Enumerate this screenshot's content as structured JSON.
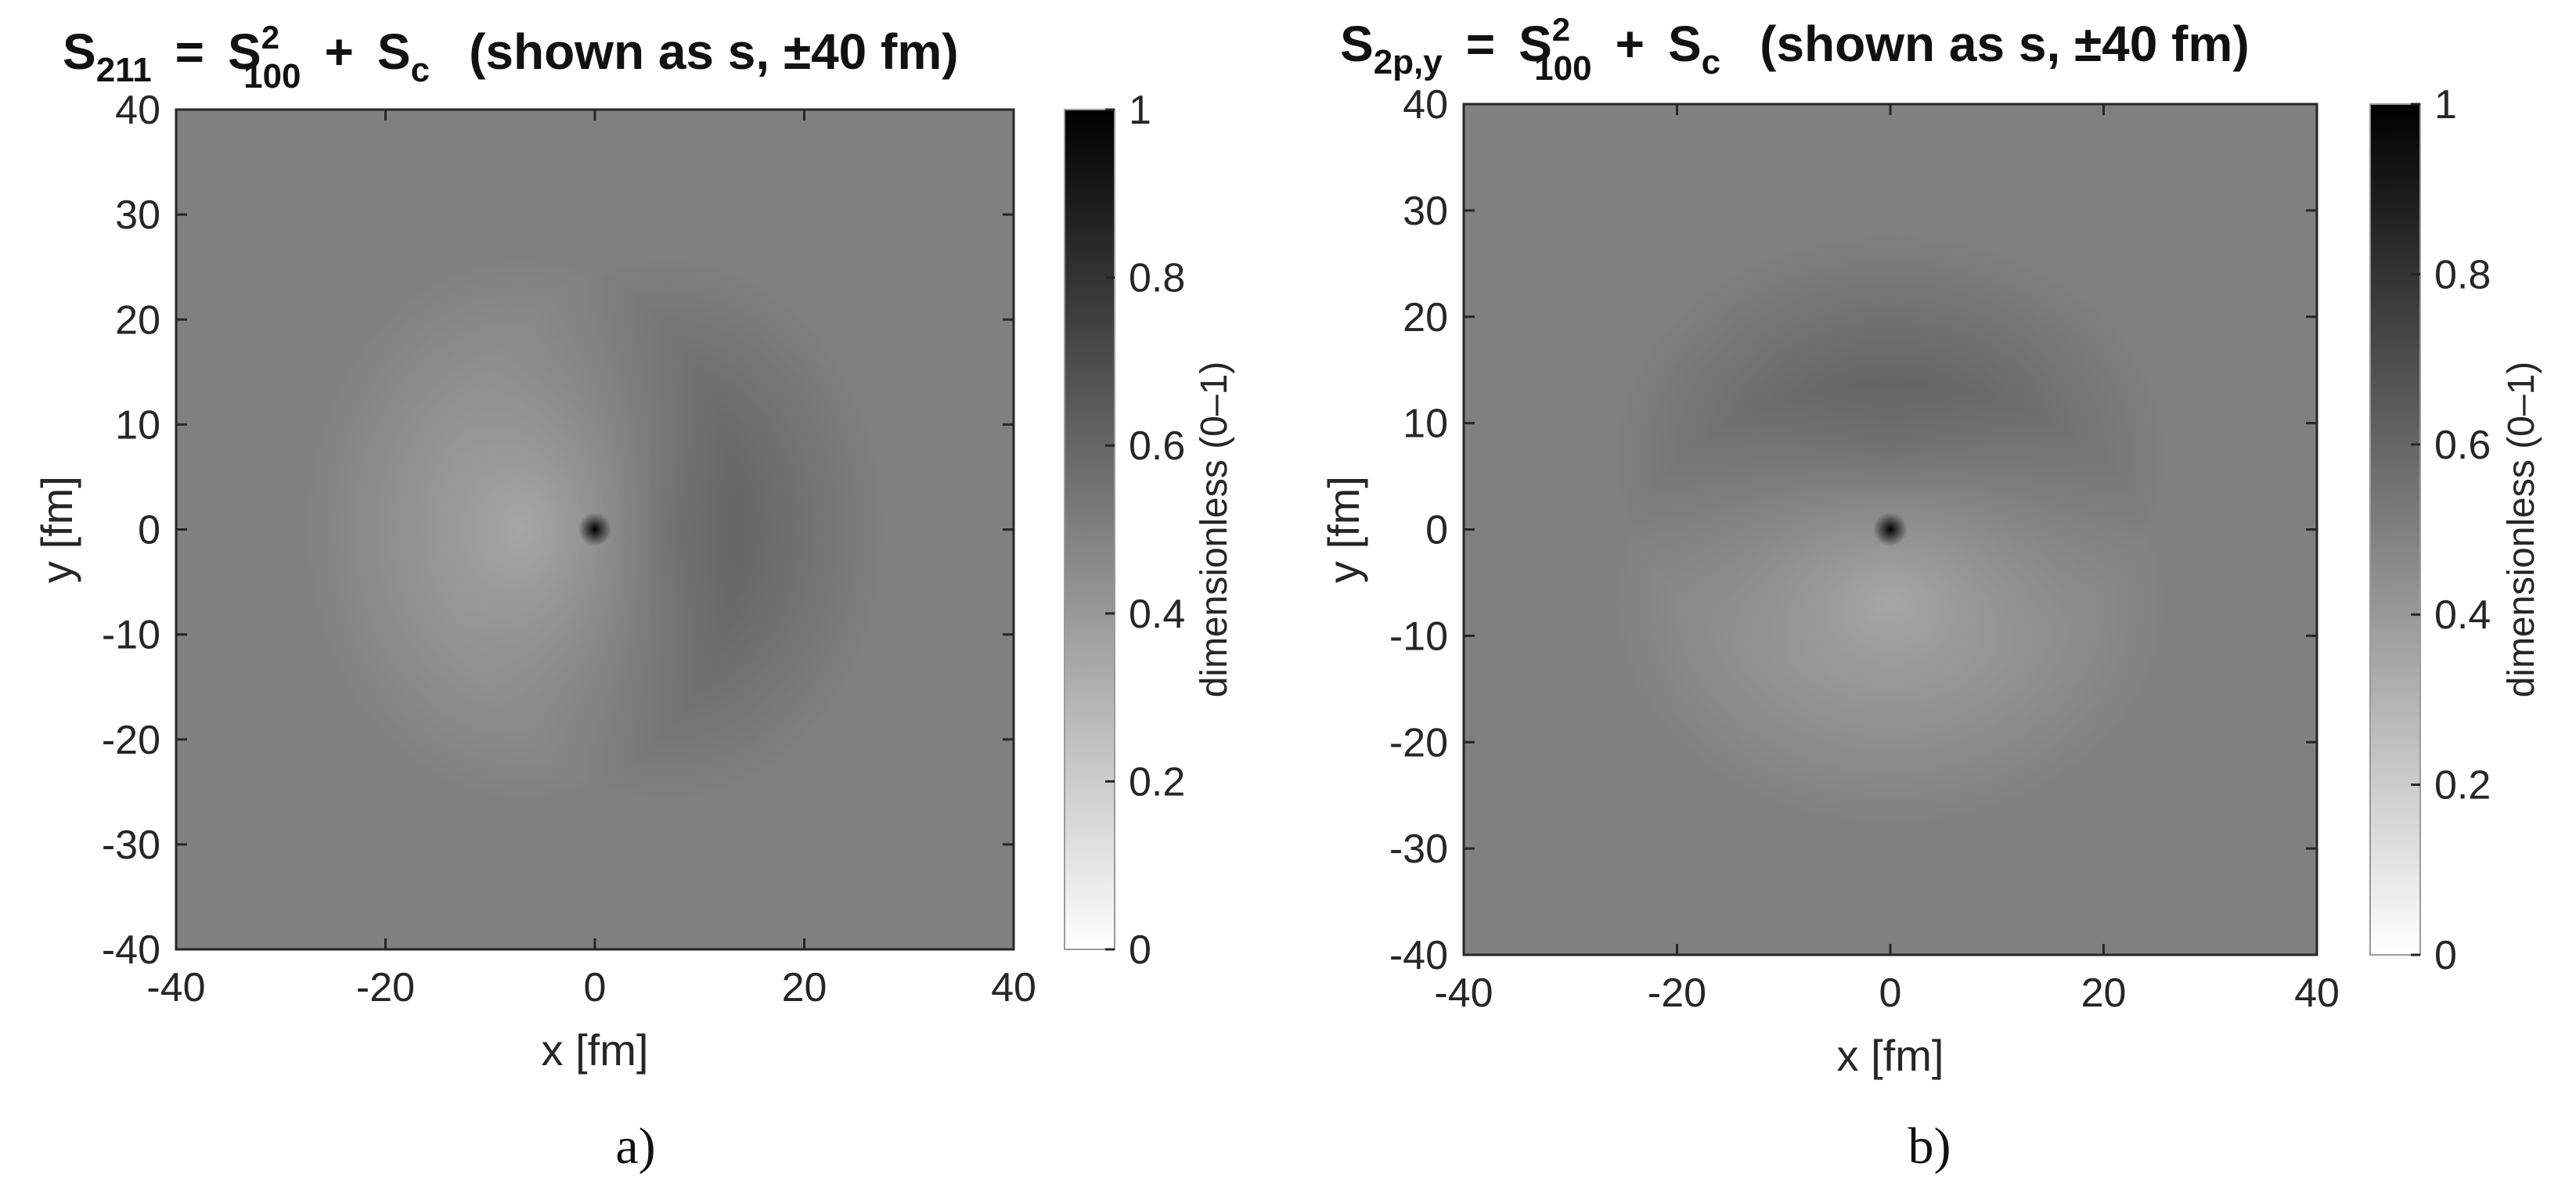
{
  "figure": {
    "panel_labels": [
      "a)",
      "b)"
    ]
  },
  "chart_data": [
    {
      "type": "heatmap",
      "panel": "a)",
      "title": {
        "main": "S",
        "sub_main": "211",
        "eq": "=",
        "term1": "S",
        "term1_sup": "2",
        "term1_sub": "100",
        "plus": "+",
        "term2": "S",
        "term2_sub": "c",
        "note": "(shown as s,  ±40  fm)"
      },
      "xlabel": "x [fm]",
      "ylabel": "y [fm]",
      "xlim": [
        -40,
        40
      ],
      "ylim": [
        -40,
        40
      ],
      "xticks": [
        "-40",
        "-20",
        "0",
        "20",
        "40"
      ],
      "yticks": [
        "40",
        "30",
        "20",
        "10",
        "0",
        "-10",
        "-20",
        "-30",
        "-40"
      ],
      "colorbar": {
        "label": "dimensionless (0–1)",
        "ticks": [
          "1",
          "0.8",
          "0.6",
          "0.4",
          "0.2",
          "0"
        ],
        "range": [
          0,
          1
        ],
        "colormap": "gray (0 = white, 1 = black)"
      },
      "background_value": 0.5,
      "features": [
        {
          "kind": "dark lobe",
          "center": [
            7,
            0
          ],
          "peak_value": 0.65,
          "extent": [
            8,
            10
          ]
        },
        {
          "kind": "light lobe",
          "center": [
            -7,
            0
          ],
          "peak_value": 0.35,
          "extent": [
            8,
            10
          ]
        },
        {
          "kind": "core",
          "center": [
            0,
            0
          ],
          "peak_value": 1.0,
          "extent": [
            1,
            1
          ]
        }
      ]
    },
    {
      "type": "heatmap",
      "panel": "b)",
      "title": {
        "main": "S",
        "sub_main": "2p,y",
        "eq": "=",
        "term1": "S",
        "term1_sup": "2",
        "term1_sub": "100",
        "plus": "+",
        "term2": "S",
        "term2_sub": "c",
        "note": "(shown as s,  ±40  fm)"
      },
      "xlabel": "x [fm]",
      "ylabel": "y [fm]",
      "xlim": [
        -40,
        40
      ],
      "ylim": [
        -40,
        40
      ],
      "xticks": [
        "-40",
        "-20",
        "0",
        "20",
        "40"
      ],
      "yticks": [
        "40",
        "30",
        "20",
        "10",
        "0",
        "-10",
        "-20",
        "-30",
        "-40"
      ],
      "colorbar": {
        "label": "dimensionless (0–1)",
        "ticks": [
          "1",
          "0.8",
          "0.6",
          "0.4",
          "0.2",
          "0"
        ],
        "range": [
          0,
          1
        ],
        "colormap": "gray (0 = white, 1 = black)"
      },
      "background_value": 0.5,
      "features": [
        {
          "kind": "dark lobe",
          "center": [
            0,
            7
          ],
          "peak_value": 0.65,
          "extent": [
            10,
            8
          ]
        },
        {
          "kind": "light lobe",
          "center": [
            0,
            -7
          ],
          "peak_value": 0.35,
          "extent": [
            10,
            8
          ]
        },
        {
          "kind": "core",
          "center": [
            0,
            0
          ],
          "peak_value": 1.0,
          "extent": [
            1,
            1
          ]
        }
      ]
    }
  ]
}
